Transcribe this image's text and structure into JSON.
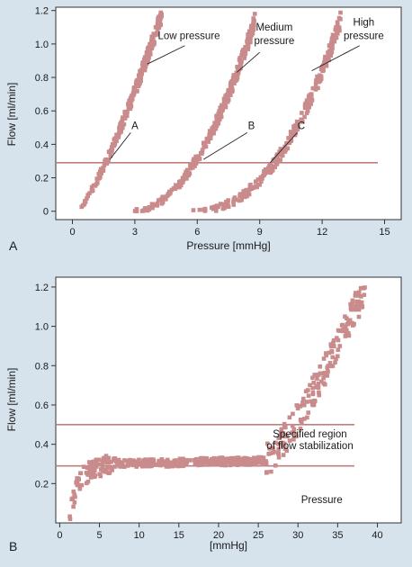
{
  "colors": {
    "background": "#d6e2ec",
    "plot_bg": "#ffffff",
    "marker": "#c98b8b",
    "guide_line": "#c07f7f",
    "axis": "#333333",
    "text": "#1a1a1a"
  },
  "chart_data": [
    {
      "panel": "A",
      "type": "scatter",
      "title": "",
      "xlabel": "Pressure [mmHg]",
      "ylabel": "Flow [ml/min]",
      "xlim": [
        -0.8,
        15.8
      ],
      "ylim": [
        -0.05,
        1.22
      ],
      "xticks": [
        "0",
        "3",
        "6",
        "9",
        "12",
        "15"
      ],
      "xtick_values": [
        0,
        3,
        6,
        9,
        12,
        15
      ],
      "yticks": [
        "0",
        "0.2",
        "0.4",
        "0.6",
        "0.8",
        "1.0",
        "1.2"
      ],
      "ytick_values": [
        0,
        0.2,
        0.4,
        0.6,
        0.8,
        1.0,
        1.2
      ],
      "grid": false,
      "hlines": [
        0.29
      ],
      "series": [
        {
          "name": "Low pressure",
          "x_start": 0.2,
          "x_end": 4.3,
          "y_max": 1.18,
          "curve_power": 1.3
        },
        {
          "name": "Medium pressure",
          "x_start": 2.9,
          "x_end": 8.8,
          "y_max": 1.15,
          "curve_power": 2.0
        },
        {
          "name": "High pressure",
          "x_start": 5.6,
          "x_end": 12.9,
          "y_max": 1.15,
          "curve_power": 2.4
        }
      ],
      "annotations": [
        {
          "text": "Low pressure",
          "x": 5.6,
          "y": 1.03
        },
        {
          "text": "Medium",
          "x": 9.7,
          "y": 1.08
        },
        {
          "text": "pressure",
          "x": 9.7,
          "y": 1.0
        },
        {
          "text": "High",
          "x": 14.0,
          "y": 1.11
        },
        {
          "text": "pressure",
          "x": 14.0,
          "y": 1.03
        },
        {
          "text": "A",
          "x": 3.0,
          "y": 0.49
        },
        {
          "text": "B",
          "x": 8.6,
          "y": 0.49
        },
        {
          "text": "C",
          "x": 11.0,
          "y": 0.49
        }
      ],
      "arrows": [
        {
          "from": [
            5.4,
            0.99
          ],
          "to": [
            3.6,
            0.88
          ]
        },
        {
          "from": [
            9.0,
            0.95
          ],
          "to": [
            7.9,
            0.83
          ]
        },
        {
          "from": [
            13.8,
            0.99
          ],
          "to": [
            11.5,
            0.84
          ]
        },
        {
          "from": [
            2.8,
            0.47
          ],
          "to": [
            1.8,
            0.31
          ]
        },
        {
          "from": [
            8.4,
            0.47
          ],
          "to": [
            6.3,
            0.31
          ]
        },
        {
          "from": [
            10.8,
            0.47
          ],
          "to": [
            9.5,
            0.29
          ]
        }
      ],
      "panel_label": "A"
    },
    {
      "panel": "B",
      "type": "scatter",
      "title": "",
      "xlabel": "[mmHg]",
      "ylabel": "Flow [ml/min]",
      "xlim": [
        -0.5,
        43
      ],
      "ylim": [
        0,
        1.25
      ],
      "xticks": [
        "0",
        "5",
        "10",
        "15",
        "20",
        "25",
        "30",
        "35",
        "40"
      ],
      "xtick_values": [
        0,
        5,
        10,
        15,
        20,
        25,
        30,
        35,
        40
      ],
      "yticks": [
        "0.2",
        "0.4",
        "0.6",
        "0.8",
        "1.0",
        "1.2"
      ],
      "ytick_values": [
        0.2,
        0.4,
        0.6,
        0.8,
        1.0,
        1.2
      ],
      "grid": false,
      "hlines": [
        0.5,
        0.29
      ],
      "series": [
        {
          "name": "",
          "x_start": 1.2,
          "x_end": 38.5,
          "y_plateau": 0.3,
          "y_max": 1.2
        }
      ],
      "annotations": [
        {
          "text": "Specified region",
          "x": 31.5,
          "y": 0.435
        },
        {
          "text": "of flow stabilization",
          "x": 31.5,
          "y": 0.375
        },
        {
          "text": "Pressure",
          "x": 33.0,
          "y": 0.1
        }
      ],
      "panel_label": "B"
    }
  ]
}
